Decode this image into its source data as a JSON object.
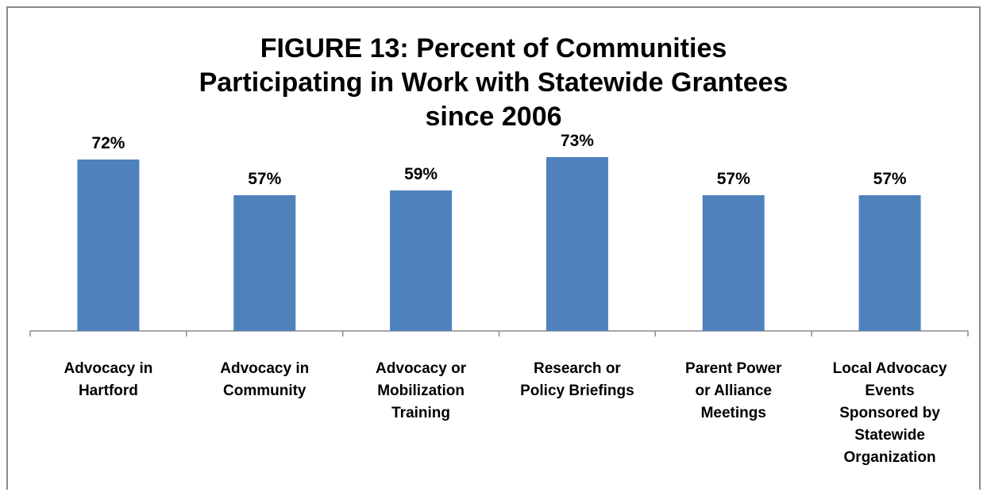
{
  "chart_data": {
    "type": "bar",
    "title_lines": [
      "FIGURE 13:  Percent of Communities",
      "Participating in Work with Statewide Grantees",
      "since 2006"
    ],
    "categories": [
      [
        "Advocacy in",
        "Hartford"
      ],
      [
        "Advocacy in",
        "Community"
      ],
      [
        "Advocacy or",
        "Mobilization",
        "Training"
      ],
      [
        "Research or",
        "Policy Briefings"
      ],
      [
        "Parent Power",
        "or Alliance",
        "Meetings"
      ],
      [
        "Local Advocacy",
        "Events",
        "Sponsored by",
        "Statewide",
        "Organization"
      ]
    ],
    "values": [
      72,
      57,
      59,
      73,
      57,
      57
    ],
    "data_labels": [
      "72%",
      "57%",
      "59%",
      "73%",
      "57%",
      "57%"
    ],
    "ylim": [
      0,
      80
    ],
    "bar_color": "#4f81bd",
    "grid": false,
    "legend": "none"
  }
}
